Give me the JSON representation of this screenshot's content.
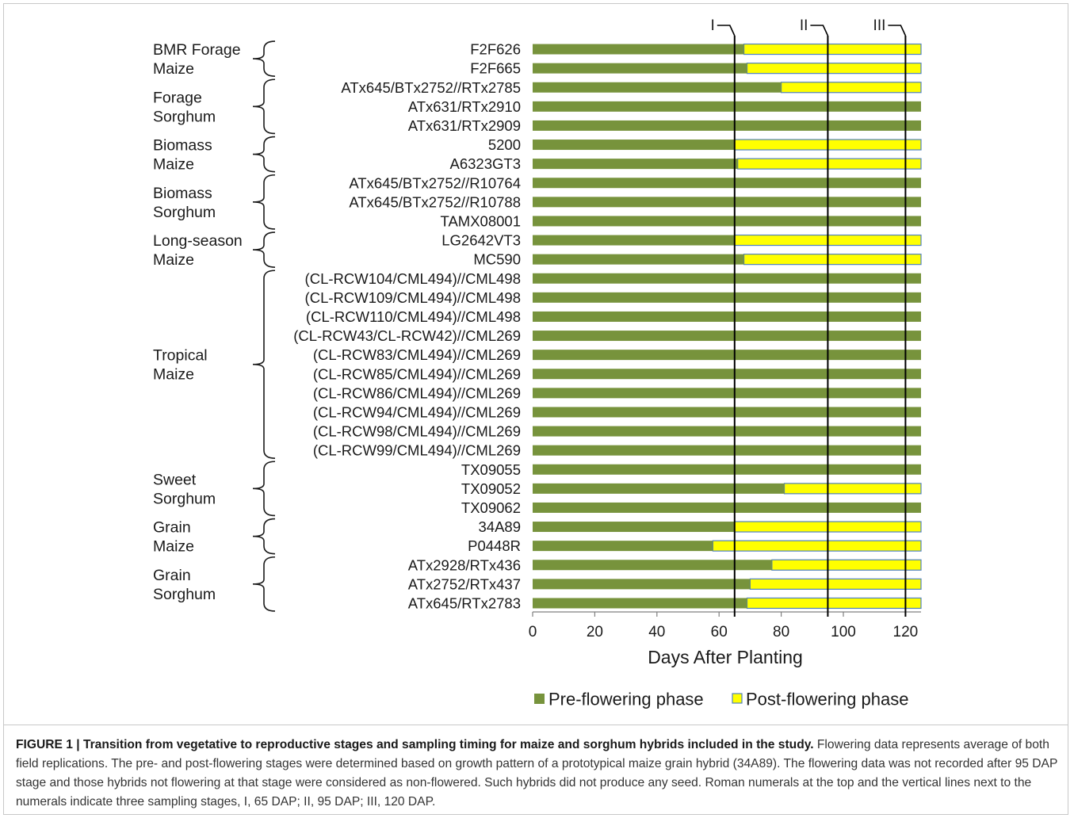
{
  "colors": {
    "pre": "#77933c",
    "post": "#ffff00",
    "post_outline": "#4f81bd",
    "divider": "#000000"
  },
  "chart_data": {
    "type": "bar",
    "orientation": "horizontal",
    "stacked": true,
    "xlabel": "Days After Planting",
    "xlim": [
      0,
      125
    ],
    "xticks": [
      0,
      20,
      40,
      60,
      80,
      100,
      120
    ],
    "grid": false,
    "legend_position": "bottom-center",
    "categories": [
      "F2F626",
      "F2F665",
      "ATx645/BTx2752//RTx2785",
      "ATx631/RTx2910",
      "ATx631/RTx2909",
      "5200",
      "A6323GT3",
      "ATx645/BTx2752//R10764",
      "ATx645/BTx2752//R10788",
      "TAMX08001",
      "LG2642VT3",
      "MC590",
      "(CL-RCW104/CML494)//CML498",
      "(CL-RCW109/CML494)//CML498",
      "(CL-RCW110/CML494)//CML498",
      "(CL-RCW43/CL-RCW42)//CML269",
      "(CL-RCW83/CML494)//CML269",
      "(CL-RCW85/CML494)//CML269",
      "(CL-RCW86/CML494)//CML269",
      "(CL-RCW94/CML494)//CML269",
      "(CL-RCW98/CML494)//CML269",
      "(CL-RCW99/CML494)//CML269",
      "TX09055",
      "TX09052",
      "TX09062",
      "34A89",
      "P0448R",
      "ATx2928/RTx436",
      "ATx2752/RTx437",
      "ATx645/RTx2783"
    ],
    "series": [
      {
        "name": "Pre-flowering phase",
        "values": [
          68,
          69,
          80,
          125,
          125,
          65,
          66,
          125,
          125,
          125,
          65,
          68,
          125,
          125,
          125,
          125,
          125,
          125,
          125,
          125,
          125,
          125,
          125,
          81,
          125,
          65,
          58,
          77,
          70,
          69
        ]
      },
      {
        "name": "Post-flowering phase",
        "values": [
          57,
          56,
          45,
          0,
          0,
          60,
          59,
          0,
          0,
          0,
          60,
          57,
          0,
          0,
          0,
          0,
          0,
          0,
          0,
          0,
          0,
          0,
          0,
          44,
          0,
          60,
          67,
          48,
          55,
          56
        ]
      }
    ],
    "groups": [
      {
        "label_lines": [
          "BMR Forage",
          "Maize"
        ],
        "start": 0,
        "end": 1
      },
      {
        "label_lines": [
          "Forage",
          "Sorghum"
        ],
        "start": 2,
        "end": 4
      },
      {
        "label_lines": [
          "Biomass",
          "Maize"
        ],
        "start": 5,
        "end": 6
      },
      {
        "label_lines": [
          "Biomass",
          "Sorghum"
        ],
        "start": 7,
        "end": 9
      },
      {
        "label_lines": [
          "Long-season",
          "Maize"
        ],
        "start": 10,
        "end": 11
      },
      {
        "label_lines": [
          "Tropical",
          "Maize"
        ],
        "start": 12,
        "end": 21
      },
      {
        "label_lines": [
          "Sweet",
          "Sorghum"
        ],
        "start": 22,
        "end": 24
      },
      {
        "label_lines": [
          "Grain",
          "Maize"
        ],
        "start": 25,
        "end": 26
      },
      {
        "label_lines": [
          "Grain",
          "Sorghum"
        ],
        "start": 27,
        "end": 29
      }
    ],
    "sampling_stages": [
      {
        "label": "I",
        "day": 65
      },
      {
        "label": "II",
        "day": 95
      },
      {
        "label": "III",
        "day": 120
      }
    ]
  },
  "caption": {
    "title": "FIGURE 1 | Transition from vegetative to reproductive stages and sampling timing for maize and sorghum hybrids included in the study.",
    "body": " Flowering data represents average of both field replications. The pre- and post-flowering stages were determined based on growth pattern of a prototypical maize grain hybrid (34A89). The flowering data was not recorded after 95 DAP stage and those hybrids not flowering at that stage were considered as non-flowered. Such hybrids did not produce any seed. Roman numerals at the top and the vertical lines next to the numerals indicate three sampling stages, I, 65 DAP; II, 95 DAP; III, 120 DAP."
  }
}
